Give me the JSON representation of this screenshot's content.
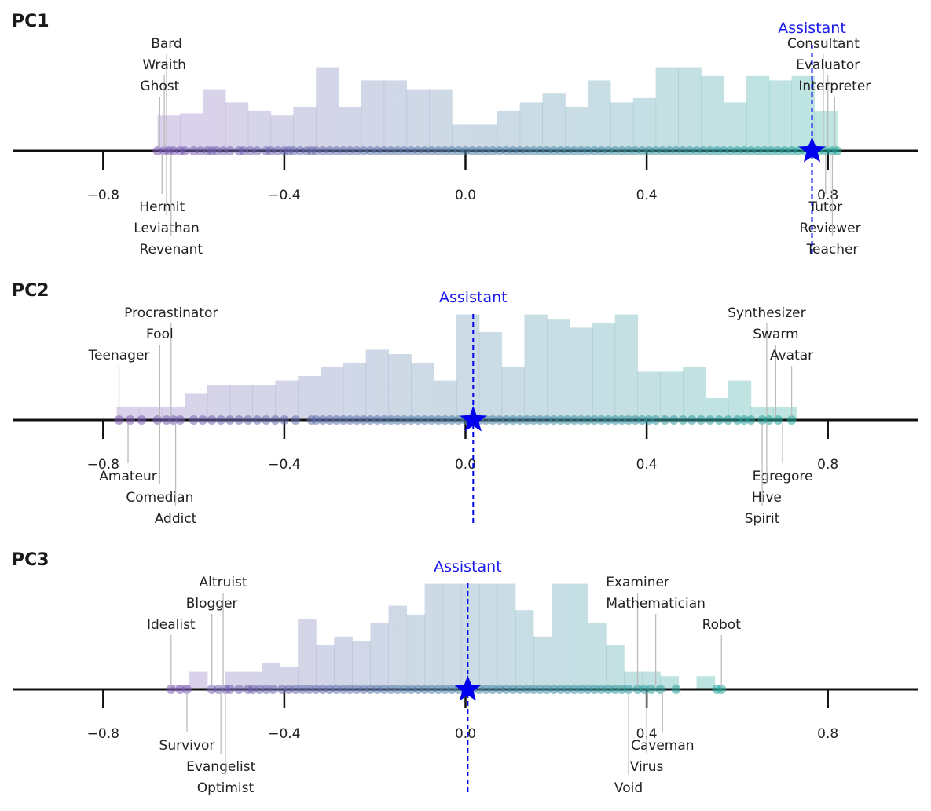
{
  "chart_data": {
    "type": "strip-histogram",
    "xlim": [
      -1.0,
      1.0
    ],
    "xticks": [
      -0.8,
      -0.4,
      0.0,
      0.4,
      0.8
    ],
    "xtick_labels": [
      "−0.8",
      "−0.4",
      "0.0",
      "0.4",
      "0.8"
    ],
    "colors": {
      "low": "#7d5bb5",
      "high": "#22a89a",
      "assistant": "#0000ee"
    },
    "assistant_label": "Assistant",
    "panels": [
      {
        "title": "PC1",
        "assistant_x": 0.765,
        "hist": {
          "edges": [
            -0.68,
            -0.63,
            -0.58,
            -0.53,
            -0.48,
            -0.43,
            -0.38,
            -0.33,
            -0.28,
            -0.23,
            -0.18,
            -0.13,
            -0.08,
            -0.03,
            0.02,
            0.07,
            0.12,
            0.17,
            0.22,
            0.27,
            0.32,
            0.37,
            0.42,
            0.47,
            0.52,
            0.57,
            0.62,
            0.67,
            0.72,
            0.77,
            0.82
          ],
          "heights": [
            0.32,
            0.34,
            0.56,
            0.44,
            0.36,
            0.32,
            0.4,
            0.76,
            0.4,
            0.64,
            0.64,
            0.56,
            0.56,
            0.24,
            0.24,
            0.36,
            0.44,
            0.52,
            0.4,
            0.64,
            0.44,
            0.48,
            0.76,
            0.76,
            0.68,
            0.44,
            0.68,
            0.64,
            0.68,
            0.36
          ]
        },
        "points": [
          -0.68,
          -0.665,
          -0.655,
          -0.645,
          -0.63,
          -0.62,
          -0.6,
          -0.585,
          -0.57,
          -0.56,
          -0.55,
          -0.535,
          -0.52,
          -0.5,
          -0.49,
          -0.475,
          -0.46,
          -0.44,
          -0.43,
          -0.415,
          -0.4,
          -0.39,
          -0.38,
          -0.365,
          -0.35,
          -0.34,
          -0.33,
          -0.315,
          -0.3,
          -0.285,
          -0.27,
          -0.255,
          -0.24,
          -0.225,
          -0.21,
          -0.195,
          -0.18,
          -0.165,
          -0.15,
          -0.135,
          -0.12,
          -0.105,
          -0.09,
          -0.075,
          -0.06,
          -0.045,
          -0.03,
          -0.015,
          0.0,
          0.015,
          0.03,
          0.045,
          0.06,
          0.075,
          0.09,
          0.105,
          0.12,
          0.135,
          0.15,
          0.165,
          0.18,
          0.195,
          0.21,
          0.225,
          0.24,
          0.255,
          0.27,
          0.285,
          0.3,
          0.315,
          0.33,
          0.345,
          0.36,
          0.375,
          0.39,
          0.405,
          0.42,
          0.435,
          0.45,
          0.465,
          0.48,
          0.495,
          0.51,
          0.525,
          0.54,
          0.555,
          0.57,
          0.585,
          0.6,
          0.615,
          0.63,
          0.645,
          0.66,
          0.675,
          0.69,
          0.705,
          0.72,
          0.735,
          0.75,
          0.78,
          0.795,
          0.81,
          0.82
        ],
        "labels_top": [
          {
            "text": "Bard",
            "x": -0.66
          },
          {
            "text": "Wraith",
            "x": -0.665
          },
          {
            "text": "Ghost",
            "x": -0.675
          },
          {
            "text": "Consultant",
            "x": 0.79
          },
          {
            "text": "Evaluator",
            "x": 0.8
          },
          {
            "text": "Interpreter",
            "x": 0.815
          }
        ],
        "labels_bottom": [
          {
            "text": "Hermit",
            "x": -0.67
          },
          {
            "text": "Leviathan",
            "x": -0.66
          },
          {
            "text": "Revenant",
            "x": -0.65
          },
          {
            "text": "Tutor",
            "x": 0.795
          },
          {
            "text": "Reviewer",
            "x": 0.805
          },
          {
            "text": "Teacher",
            "x": 0.81
          }
        ]
      },
      {
        "title": "PC2",
        "assistant_x": 0.017,
        "hist": {
          "edges": [
            -0.77,
            -0.72,
            -0.67,
            -0.62,
            -0.57,
            -0.52,
            -0.47,
            -0.42,
            -0.37,
            -0.32,
            -0.27,
            -0.22,
            -0.17,
            -0.12,
            -0.07,
            -0.02,
            0.03,
            0.08,
            0.13,
            0.18,
            0.23,
            0.28,
            0.33,
            0.38,
            0.43,
            0.48,
            0.53,
            0.58,
            0.63,
            0.68,
            0.73
          ],
          "heights": [
            0.12,
            0.12,
            0.12,
            0.24,
            0.32,
            0.32,
            0.32,
            0.36,
            0.4,
            0.48,
            0.52,
            0.64,
            0.6,
            0.52,
            0.36,
            0.96,
            0.8,
            0.48,
            0.96,
            0.92,
            0.84,
            0.88,
            0.96,
            0.44,
            0.44,
            0.48,
            0.2,
            0.36,
            0.12,
            0.12
          ]
        },
        "points": [
          -0.765,
          -0.74,
          -0.715,
          -0.68,
          -0.66,
          -0.645,
          -0.63,
          -0.6,
          -0.58,
          -0.56,
          -0.54,
          -0.52,
          -0.5,
          -0.48,
          -0.46,
          -0.44,
          -0.42,
          -0.4,
          -0.375,
          -0.34,
          -0.33,
          -0.315,
          -0.3,
          -0.285,
          -0.27,
          -0.255,
          -0.24,
          -0.225,
          -0.21,
          -0.195,
          -0.18,
          -0.165,
          -0.15,
          -0.135,
          -0.12,
          -0.105,
          -0.09,
          -0.075,
          -0.06,
          -0.045,
          -0.03,
          -0.015,
          0.0,
          0.015,
          0.03,
          0.045,
          0.06,
          0.075,
          0.09,
          0.105,
          0.12,
          0.135,
          0.15,
          0.165,
          0.18,
          0.195,
          0.21,
          0.225,
          0.24,
          0.255,
          0.27,
          0.285,
          0.3,
          0.315,
          0.33,
          0.345,
          0.36,
          0.375,
          0.39,
          0.405,
          0.42,
          0.44,
          0.46,
          0.48,
          0.5,
          0.52,
          0.54,
          0.56,
          0.58,
          0.6,
          0.615,
          0.63,
          0.655,
          0.67,
          0.69,
          0.72
        ],
        "labels_top": [
          {
            "text": "Procrastinator",
            "x": -0.65
          },
          {
            "text": "Fool",
            "x": -0.675
          },
          {
            "text": "Teenager",
            "x": -0.765
          },
          {
            "text": "Synthesizer",
            "x": 0.665
          },
          {
            "text": "Swarm",
            "x": 0.685
          },
          {
            "text": "Avatar",
            "x": 0.72
          }
        ],
        "labels_bottom": [
          {
            "text": "Amateur",
            "x": -0.745
          },
          {
            "text": "Comedian",
            "x": -0.675
          },
          {
            "text": "Addict",
            "x": -0.64
          },
          {
            "text": "Egregore",
            "x": 0.7
          },
          {
            "text": "Hive",
            "x": 0.665
          },
          {
            "text": "Spirit",
            "x": 0.655
          }
        ]
      },
      {
        "title": "PC3",
        "assistant_x": 0.005,
        "hist": {
          "edges": [
            -0.65,
            -0.61,
            -0.57,
            -0.53,
            -0.49,
            -0.45,
            -0.41,
            -0.37,
            -0.33,
            -0.29,
            -0.25,
            -0.21,
            -0.17,
            -0.13,
            -0.09,
            -0.05,
            -0.01,
            0.03,
            0.07,
            0.11,
            0.15,
            0.19,
            0.23,
            0.27,
            0.31,
            0.35,
            0.39,
            0.43,
            0.47,
            0.51,
            0.55,
            0.59
          ],
          "heights": [
            0.04,
            0.16,
            0.0,
            0.16,
            0.16,
            0.24,
            0.2,
            0.64,
            0.4,
            0.48,
            0.44,
            0.6,
            0.76,
            0.68,
            0.96,
            0.96,
            0.96,
            0.96,
            0.96,
            0.72,
            0.48,
            0.96,
            0.96,
            0.6,
            0.4,
            0.16,
            0.16,
            0.12,
            0.0,
            0.12,
            0.0
          ]
        },
        "points": [
          -0.65,
          -0.63,
          -0.615,
          -0.56,
          -0.545,
          -0.53,
          -0.52,
          -0.5,
          -0.48,
          -0.47,
          -0.455,
          -0.44,
          -0.425,
          -0.405,
          -0.39,
          -0.375,
          -0.36,
          -0.345,
          -0.33,
          -0.315,
          -0.3,
          -0.285,
          -0.27,
          -0.255,
          -0.24,
          -0.225,
          -0.21,
          -0.195,
          -0.18,
          -0.165,
          -0.15,
          -0.135,
          -0.12,
          -0.105,
          -0.09,
          -0.075,
          -0.06,
          -0.045,
          -0.03,
          -0.015,
          0.0,
          0.015,
          0.03,
          0.045,
          0.06,
          0.075,
          0.09,
          0.105,
          0.12,
          0.135,
          0.15,
          0.165,
          0.18,
          0.195,
          0.21,
          0.225,
          0.24,
          0.255,
          0.27,
          0.285,
          0.3,
          0.315,
          0.33,
          0.345,
          0.36,
          0.38,
          0.395,
          0.41,
          0.43,
          0.465,
          0.555,
          0.565
        ],
        "labels_top": [
          {
            "text": "Altruist",
            "x": -0.535
          },
          {
            "text": "Blogger",
            "x": -0.56
          },
          {
            "text": "Idealist",
            "x": -0.65
          },
          {
            "text": "Examiner",
            "x": 0.38
          },
          {
            "text": "Mathematician",
            "x": 0.42
          },
          {
            "text": "Robot",
            "x": 0.565
          }
        ],
        "labels_bottom": [
          {
            "text": "Survivor",
            "x": -0.615
          },
          {
            "text": "Evangelist",
            "x": -0.54
          },
          {
            "text": "Optimist",
            "x": -0.53
          },
          {
            "text": "Caveman",
            "x": 0.435
          },
          {
            "text": "Virus",
            "x": 0.4
          },
          {
            "text": "Void",
            "x": 0.36
          }
        ]
      }
    ]
  }
}
